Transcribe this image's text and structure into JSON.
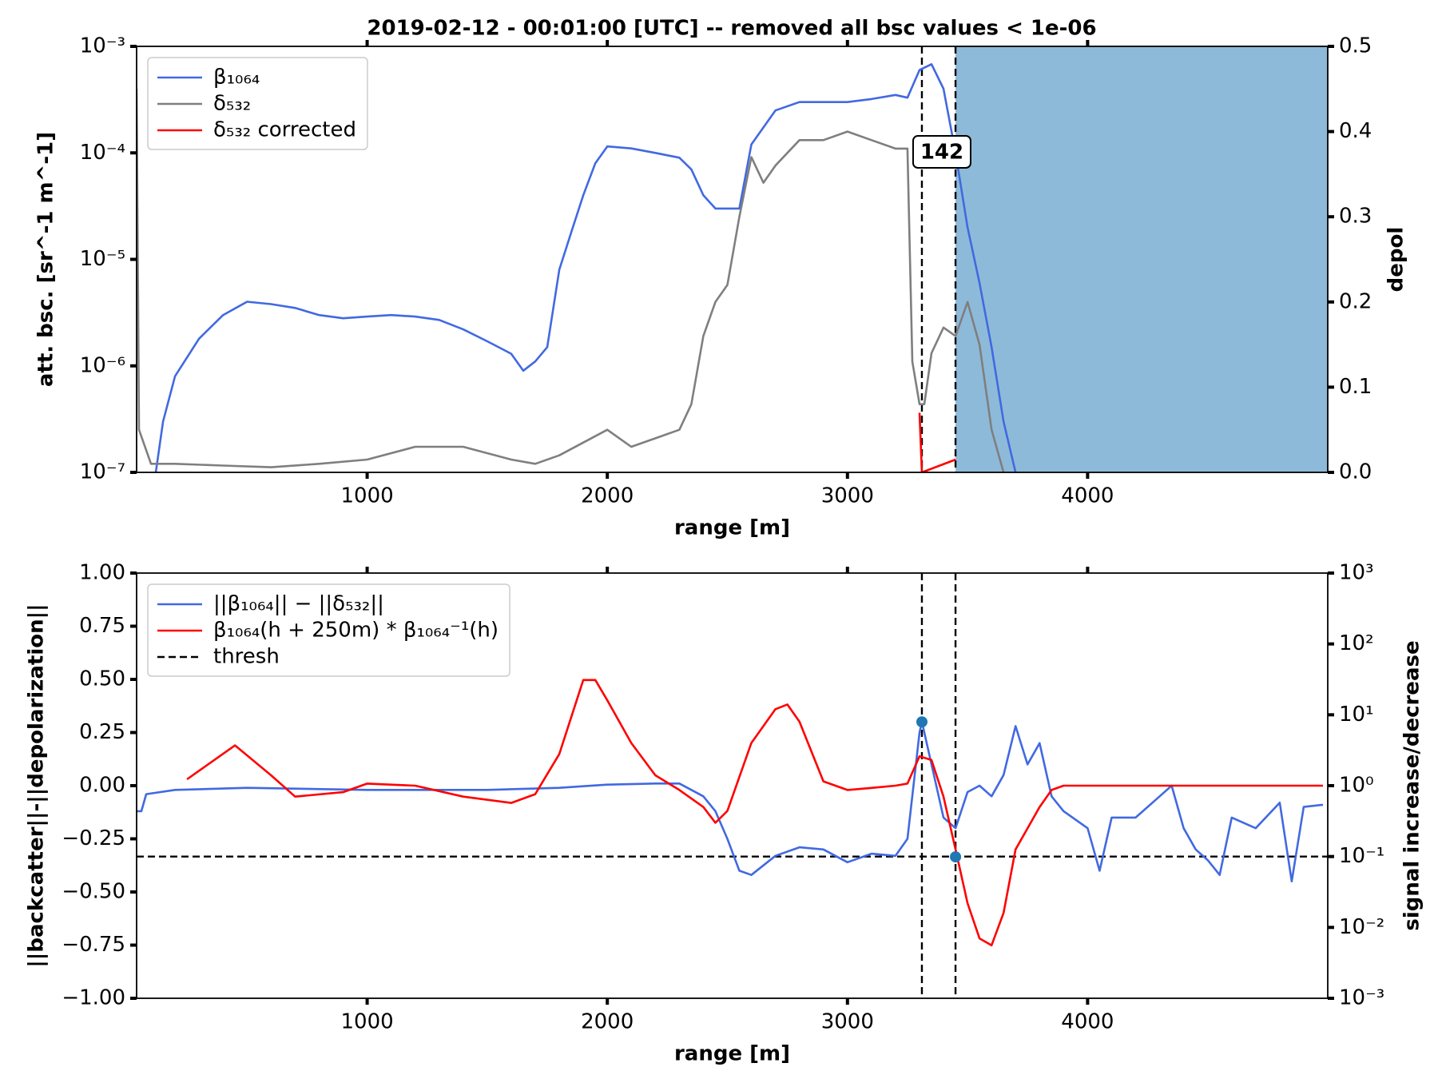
{
  "chart_data": [
    {
      "type": "line",
      "title": "2019-02-12 - 00:01:00 [UTC] -- removed all bsc values < 1e-06",
      "xlabel": "range [m]",
      "ylabel": "att. bsc. [sr^-1 m^-1]",
      "y2label": "depol",
      "ylabel_color": "#4169e1",
      "y2label_color": "#808080",
      "xlim": [
        40,
        5000
      ],
      "xticks": [
        1000,
        2000,
        3000,
        4000
      ],
      "ylim": [
        1e-07,
        0.001
      ],
      "ylog": true,
      "yticks": [
        {
          "value": 1e-07,
          "label": "10⁻⁷"
        },
        {
          "value": 1e-06,
          "label": "10⁻⁶"
        },
        {
          "value": 1e-05,
          "label": "10⁻⁵"
        },
        {
          "value": 0.0001,
          "label": "10⁻⁴"
        },
        {
          "value": 0.001,
          "label": "10⁻³"
        }
      ],
      "y2lim": [
        0,
        0.5
      ],
      "y2ticks": [
        {
          "value": 0,
          "label": "0.0"
        },
        0.1,
        0.2,
        0.3,
        0.4,
        0.5
      ],
      "span": [
        3450,
        5000
      ],
      "span_color": "#8ebad9",
      "vlines": [
        3310,
        3450
      ],
      "annotation": "142",
      "legend": "upper left",
      "series": [
        {
          "name": "β₁₀₆₄",
          "color": "#4169e1",
          "x": [
            120,
            150,
            200,
            300,
            400,
            500,
            600,
            700,
            800,
            900,
            1000,
            1100,
            1200,
            1300,
            1400,
            1500,
            1600,
            1650,
            1700,
            1750,
            1800,
            1850,
            1900,
            1950,
            2000,
            2100,
            2200,
            2300,
            2350,
            2400,
            2450,
            2500,
            2550,
            2600,
            2700,
            2800,
            2900,
            3000,
            3100,
            3200,
            3250,
            3300,
            3350,
            3400,
            3450,
            3500,
            3550,
            3600,
            3650,
            3700
          ],
          "values": [
            1e-07,
            3e-07,
            8e-07,
            1.8e-06,
            3e-06,
            4e-06,
            3.8e-06,
            3.5e-06,
            3e-06,
            2.8e-06,
            2.9e-06,
            3e-06,
            2.9e-06,
            2.7e-06,
            2.2e-06,
            1.7e-06,
            1.3e-06,
            9e-07,
            1.1e-06,
            1.5e-06,
            8e-06,
            1.8e-05,
            4e-05,
            8e-05,
            0.000115,
            0.00011,
            0.0001,
            9e-05,
            7e-05,
            4e-05,
            3e-05,
            3e-05,
            3e-05,
            0.00012,
            0.00025,
            0.0003,
            0.0003,
            0.0003,
            0.00032,
            0.00035,
            0.00033,
            0.0006,
            0.00068,
            0.0004,
            0.0001,
            2e-05,
            6e-06,
            1.5e-06,
            3e-07,
            1e-07
          ]
        },
        {
          "name": "δ₅₃₂",
          "color": "#7f7f7f",
          "axis": "y2",
          "x": [
            40,
            50,
            100,
            200,
            400,
            600,
            800,
            1000,
            1200,
            1400,
            1600,
            1700,
            1800,
            2000,
            2100,
            2200,
            2300,
            2350,
            2400,
            2450,
            2500,
            2550,
            2600,
            2650,
            2700,
            2800,
            2900,
            3000,
            3100,
            3200,
            3250,
            3270,
            3300,
            3320,
            3350,
            3400,
            3450,
            3500,
            3550,
            3600,
            3650
          ],
          "values": [
            0.45,
            0.05,
            0.01,
            0.01,
            0.008,
            0.006,
            0.01,
            0.015,
            0.03,
            0.03,
            0.015,
            0.01,
            0.02,
            0.05,
            0.03,
            0.04,
            0.05,
            0.08,
            0.16,
            0.2,
            0.22,
            0.3,
            0.37,
            0.34,
            0.36,
            0.39,
            0.39,
            0.4,
            0.39,
            0.38,
            0.38,
            0.13,
            0.08,
            0.08,
            0.14,
            0.17,
            0.16,
            0.2,
            0.15,
            0.05,
            0
          ]
        },
        {
          "name": "δ₅₃₂ corrected",
          "color": "#ff0000",
          "axis": "y2",
          "x": [
            3300,
            3310,
            3450
          ],
          "values": [
            0.07,
            0,
            0.015
          ]
        }
      ]
    },
    {
      "type": "line",
      "xlabel": "range [m]",
      "ylabel": "||backcatter||-||depolarization||",
      "y2label": "signal increase/decrease",
      "ylabel_color": "#4169e1",
      "y2label_color": "#ff0000",
      "xlim": [
        40,
        5000
      ],
      "xticks": [
        1000,
        2000,
        3000,
        4000
      ],
      "ylim": [
        -1,
        1
      ],
      "yticks": [
        {
          "value": -1,
          "label": "−1.00"
        },
        {
          "value": -0.75,
          "label": "−0.75"
        },
        {
          "value": -0.5,
          "label": "−0.50"
        },
        {
          "value": -0.25,
          "label": "−0.25"
        },
        {
          "value": 0,
          "label": "0.00"
        },
        0.25,
        {
          "value": 0.5,
          "label": "0.50"
        },
        0.75,
        {
          "value": 1,
          "label": "1.00"
        }
      ],
      "y2lim": [
        0.001,
        1000
      ],
      "y2log": true,
      "y2ticks": [
        {
          "value": 0.001,
          "label": "10⁻³"
        },
        {
          "value": 0.01,
          "label": "10⁻²"
        },
        {
          "value": 0.1,
          "label": "10⁻¹"
        },
        {
          "value": 1,
          "label": "10⁰"
        },
        {
          "value": 10,
          "label": "10¹"
        },
        {
          "value": 100,
          "label": "10²"
        },
        {
          "value": 1000,
          "label": "10³"
        }
      ],
      "vlines": [
        3310,
        3450
      ],
      "legend": "upper left",
      "series": [
        {
          "name": "||β₁₀₆₄|| − ||δ₅₃₂||",
          "color": "#4169e1",
          "x": [
            40,
            60,
            80,
            200,
            500,
            1000,
            1500,
            1800,
            2000,
            2200,
            2300,
            2400,
            2450,
            2500,
            2550,
            2600,
            2700,
            2800,
            2900,
            3000,
            3100,
            3200,
            3250,
            3300,
            3310,
            3350,
            3400,
            3450,
            3500,
            3550,
            3600,
            3650,
            3700,
            3750,
            3800,
            3850,
            3900,
            4000,
            4050,
            4100,
            4200,
            4300,
            4350,
            4400,
            4450,
            4500,
            4550,
            4600,
            4700,
            4800,
            4850,
            4900,
            4980
          ],
          "values": [
            -0.12,
            -0.12,
            -0.04,
            -0.02,
            -0.01,
            -0.02,
            -0.02,
            -0.01,
            0.005,
            0.01,
            0.01,
            -0.05,
            -0.12,
            -0.25,
            -0.4,
            -0.42,
            -0.33,
            -0.29,
            -0.3,
            -0.36,
            -0.32,
            -0.33,
            -0.25,
            0.25,
            0.3,
            0.1,
            -0.15,
            -0.2,
            -0.03,
            0,
            -0.05,
            0.05,
            0.28,
            0.1,
            0.2,
            -0.05,
            -0.12,
            -0.2,
            -0.4,
            -0.15,
            -0.15,
            -0.05,
            0,
            -0.2,
            -0.3,
            -0.35,
            -0.42,
            -0.15,
            -0.2,
            -0.08,
            -0.45,
            -0.1,
            -0.09
          ]
        },
        {
          "name": "β₁₀₆₄(h + 250m) * β₁₀₆₄⁻¹(h)",
          "color": "#ff0000",
          "axis": "y2",
          "x": [
            250,
            450,
            600,
            700,
            900,
            1000,
            1200,
            1400,
            1600,
            1700,
            1800,
            1900,
            1950,
            2000,
            2100,
            2200,
            2300,
            2400,
            2450,
            2500,
            2600,
            2700,
            2750,
            2800,
            2900,
            3000,
            3100,
            3200,
            3250,
            3300,
            3350,
            3400,
            3450,
            3500,
            3550,
            3600,
            3650,
            3700,
            3750,
            3800,
            3850,
            3900,
            4000,
            4500,
            4980
          ],
          "values": [
            1.23,
            3.7,
            1.4,
            0.7,
            0.81,
            1.07,
            1,
            0.7,
            0.57,
            0.76,
            2.8,
            31,
            31,
            16,
            4,
            1.4,
            0.87,
            0.5,
            0.3,
            0.44,
            4,
            12,
            14,
            8,
            1.15,
            0.87,
            0.93,
            1,
            1.07,
            2.6,
            2.3,
            0.7,
            0.126,
            0.022,
            0.007,
            0.0056,
            0.016,
            0.126,
            0.25,
            0.5,
            0.87,
            1,
            1,
            1,
            1
          ]
        }
      ],
      "hline": {
        "name": "thresh",
        "color": "#000000",
        "axis": "y2",
        "value": 0.1
      },
      "markers": {
        "color": "#1f77b4",
        "x": [
          3310,
          3450
        ],
        "values": [
          0.3,
          -0.335
        ]
      }
    }
  ]
}
